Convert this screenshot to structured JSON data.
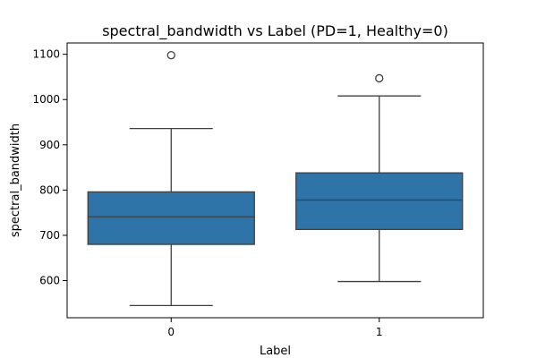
{
  "chart_data": {
    "type": "boxplot",
    "title": "spectral_bandwidth vs Label (PD=1, Healthy=0)",
    "xlabel": "Label",
    "ylabel": "spectral_bandwidth",
    "categories": [
      "0",
      "1"
    ],
    "ylim": [
      518,
      1125
    ],
    "yticks": [
      600,
      700,
      800,
      900,
      1000,
      1100
    ],
    "grid": false,
    "boxes": [
      {
        "category": "0",
        "whisker_low": 545,
        "q1": 680,
        "median": 741,
        "q3": 796,
        "whisker_high": 936,
        "outliers": [
          1098
        ]
      },
      {
        "category": "1",
        "whisker_low": 598,
        "q1": 713,
        "median": 778,
        "q3": 838,
        "whisker_high": 1008,
        "outliers": [
          1047
        ]
      }
    ],
    "colors": {
      "box_fill": "#2f74a8",
      "line": "#3f3f3f"
    }
  }
}
